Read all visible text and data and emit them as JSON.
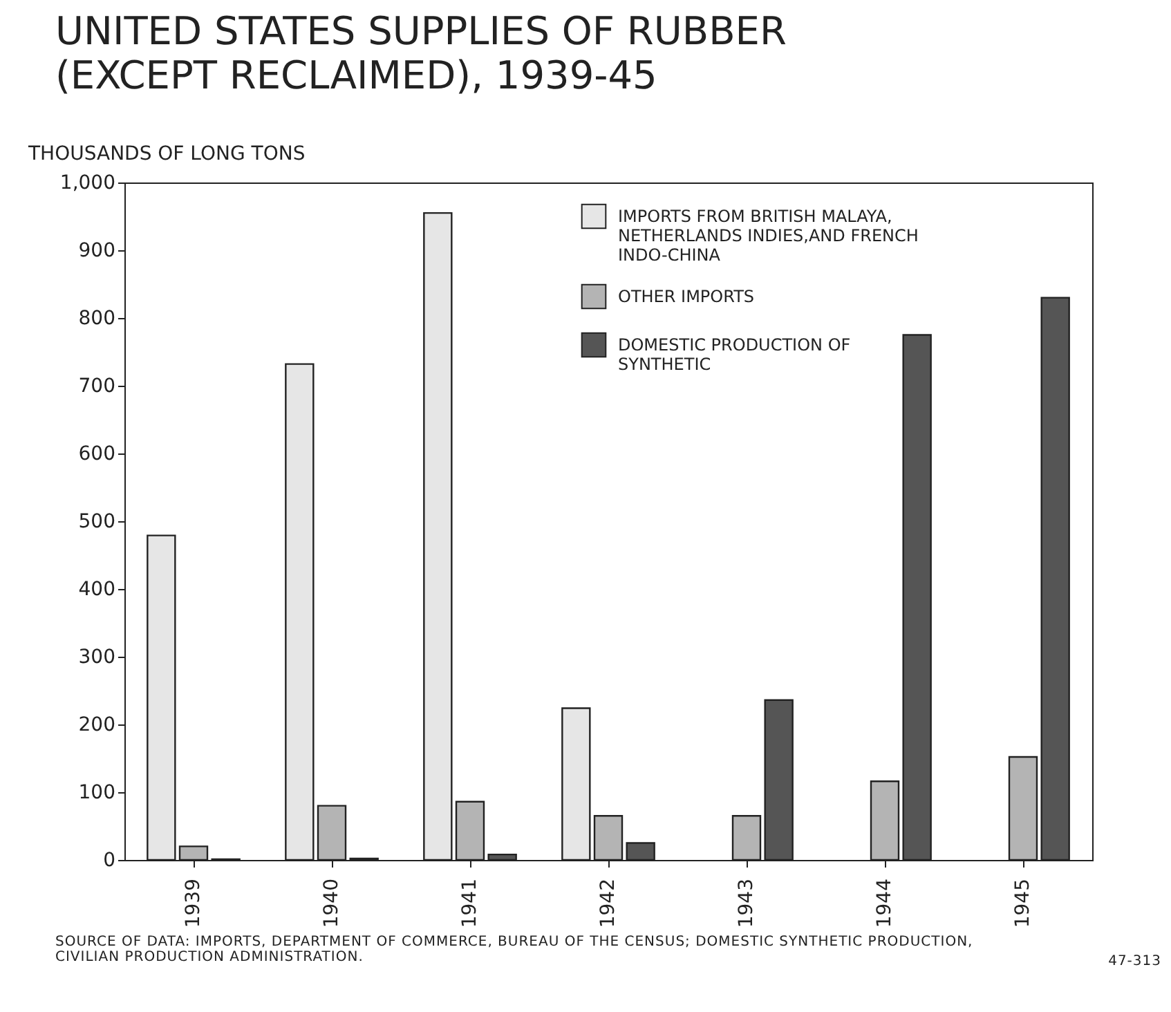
{
  "chart_data": {
    "type": "bar",
    "title": "UNITED STATES SUPPLIES OF RUBBER (EXCEPT RECLAIMED), 1939-45",
    "ylabel": "THOUSANDS OF LONG TONS",
    "categories": [
      "1939",
      "1940",
      "1941",
      "1942",
      "1943",
      "1944",
      "1945"
    ],
    "series": [
      {
        "name": "IMPORTS FROM BRITISH MALAYA, NETHERLANDS INDIES,AND FRENCH INDO-CHINA",
        "color": "#e6e6e6",
        "values": [
          479,
          732,
          955,
          224,
          null,
          null,
          null
        ]
      },
      {
        "name": "OTHER IMPORTS",
        "color": "#b4b4b4",
        "values": [
          20,
          80,
          86,
          65,
          65,
          116,
          152
        ]
      },
      {
        "name": "DOMESTIC PRODUCTION OF SYNTHETIC",
        "color": "#555555",
        "values": [
          1,
          2,
          8,
          25,
          236,
          775,
          830
        ]
      }
    ],
    "ylim": [
      0,
      1000
    ],
    "yticks": [
      0,
      100,
      200,
      300,
      400,
      500,
      600,
      700,
      800,
      900,
      {
        "value": 1000,
        "label": "1,000"
      }
    ],
    "legend": "top right",
    "grid": false,
    "annotations": [
      "SOURCE OF DATA: IMPORTS, DEPARTMENT OF COMMERCE, BUREAU OF THE CENSUS; DOMESTIC SYNTHETIC PRODUCTION, CIVILIAN PRODUCTION ADMINISTRATION.",
      "47-313"
    ]
  }
}
